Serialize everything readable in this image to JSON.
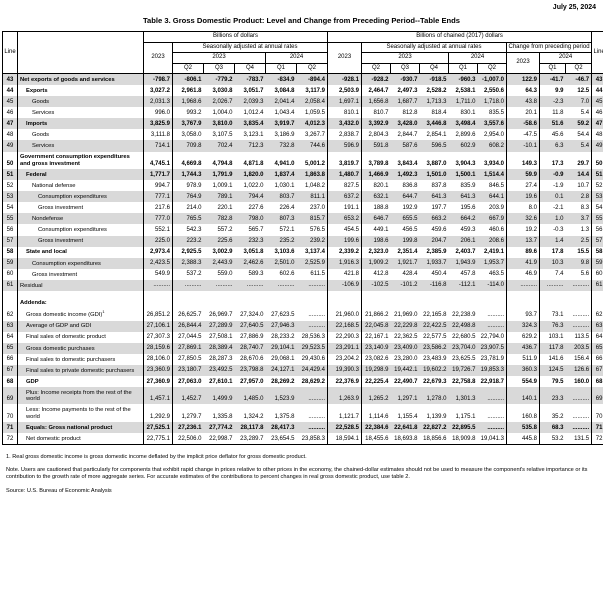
{
  "page": {
    "date": "July 25, 2024",
    "title": "Table 3. Gross Domestic Product: Level and Change from Preceding Period--Table Ends"
  },
  "header": {
    "line": "Line",
    "billions": "Billions of dollars",
    "chained": "Billions of chained (2017) dollars",
    "saar": "Seasonally adjusted at annual rates",
    "change": "Change from preceding period",
    "y2023": "2023",
    "y2024": "2024",
    "q": [
      "Q2",
      "Q3",
      "Q4",
      "Q1",
      "Q2"
    ]
  },
  "table": {
    "rows": [
      {
        "line": "43",
        "label": "Net exports of goods and services",
        "indent": 0,
        "bold": true,
        "shaded": true,
        "bil": [
          "-798.7",
          "-806.1",
          "-779.2",
          "-783.7",
          "-834.9",
          "-894.4"
        ],
        "ch": [
          "-928.1",
          "-928.2",
          "-930.7",
          "-918.5",
          "-960.3",
          "-1,007.0"
        ],
        "chg": [
          "122.9",
          "-41.7",
          "-46.7"
        ]
      },
      {
        "line": "44",
        "label": "Exports",
        "indent": 1,
        "bold": true,
        "shaded": false,
        "bil": [
          "3,027.2",
          "2,961.8",
          "3,030.8",
          "3,051.7",
          "3,084.8",
          "3,117.9"
        ],
        "ch": [
          "2,503.9",
          "2,464.7",
          "2,497.3",
          "2,528.2",
          "2,538.1",
          "2,550.6"
        ],
        "chg": [
          "64.3",
          "9.9",
          "12.5"
        ]
      },
      {
        "line": "45",
        "label": "Goods",
        "indent": 2,
        "bold": false,
        "shaded": true,
        "bil": [
          "2,031.3",
          "1,968.6",
          "2,026.7",
          "2,039.3",
          "2,041.4",
          "2,058.4"
        ],
        "ch": [
          "1,697.1",
          "1,656.8",
          "1,687.7",
          "1,713.3",
          "1,711.0",
          "1,718.0"
        ],
        "chg": [
          "43.8",
          "-2.3",
          "7.0"
        ]
      },
      {
        "line": "46",
        "label": "Services",
        "indent": 2,
        "bold": false,
        "shaded": false,
        "bil": [
          "996.0",
          "993.2",
          "1,004.0",
          "1,012.4",
          "1,043.4",
          "1,059.5"
        ],
        "ch": [
          "810.1",
          "810.7",
          "812.8",
          "818.4",
          "830.1",
          "835.5"
        ],
        "chg": [
          "20.1",
          "11.8",
          "5.4"
        ]
      },
      {
        "line": "47",
        "label": "Imports",
        "indent": 1,
        "bold": true,
        "shaded": true,
        "bil": [
          "3,825.9",
          "3,767.9",
          "3,810.0",
          "3,835.4",
          "3,919.7",
          "4,012.3"
        ],
        "ch": [
          "3,432.0",
          "3,392.9",
          "3,428.0",
          "3,446.8",
          "3,498.4",
          "3,557.6"
        ],
        "chg": [
          "-58.6",
          "51.6",
          "59.2"
        ]
      },
      {
        "line": "48",
        "label": "Goods",
        "indent": 2,
        "bold": false,
        "shaded": false,
        "bil": [
          "3,111.8",
          "3,058.0",
          "3,107.5",
          "3,123.1",
          "3,186.9",
          "3,267.7"
        ],
        "ch": [
          "2,838.7",
          "2,804.3",
          "2,844.7",
          "2,854.1",
          "2,899.6",
          "2,954.0"
        ],
        "chg": [
          "-47.5",
          "45.6",
          "54.4"
        ]
      },
      {
        "line": "49",
        "label": "Services",
        "indent": 2,
        "bold": false,
        "shaded": true,
        "bil": [
          "714.1",
          "709.8",
          "702.4",
          "712.3",
          "732.8",
          "744.6"
        ],
        "ch": [
          "596.9",
          "591.8",
          "587.6",
          "596.5",
          "602.9",
          "608.2"
        ],
        "chg": [
          "-10.1",
          "6.3",
          "5.4"
        ]
      },
      {
        "line": "50",
        "label": "Government consumption expenditures and gross investment",
        "indent": 0,
        "bold": true,
        "shaded": false,
        "wrap": true,
        "bil": [
          "4,745.1",
          "4,669.8",
          "4,794.8",
          "4,871.8",
          "4,941.0",
          "5,001.2"
        ],
        "ch": [
          "3,819.7",
          "3,789.8",
          "3,843.4",
          "3,887.0",
          "3,904.3",
          "3,934.0"
        ],
        "chg": [
          "149.3",
          "17.3",
          "29.7"
        ]
      },
      {
        "line": "51",
        "label": "Federal",
        "indent": 1,
        "bold": true,
        "shaded": true,
        "bil": [
          "1,771.7",
          "1,744.3",
          "1,791.9",
          "1,820.0",
          "1,837.4",
          "1,863.8"
        ],
        "ch": [
          "1,480.7",
          "1,466.9",
          "1,492.3",
          "1,501.0",
          "1,500.1",
          "1,514.4"
        ],
        "chg": [
          "59.9",
          "-0.9",
          "14.4"
        ]
      },
      {
        "line": "52",
        "label": "National defense",
        "indent": 2,
        "bold": false,
        "shaded": false,
        "bil": [
          "994.7",
          "978.9",
          "1,009.1",
          "1,022.0",
          "1,030.1",
          "1,048.2"
        ],
        "ch": [
          "827.5",
          "820.1",
          "836.8",
          "837.8",
          "835.9",
          "846.5"
        ],
        "chg": [
          "27.4",
          "-1.9",
          "10.7"
        ]
      },
      {
        "line": "53",
        "label": "Consumption expenditures",
        "indent": 3,
        "bold": false,
        "shaded": true,
        "bil": [
          "777.1",
          "764.9",
          "789.1",
          "794.4",
          "803.7",
          "811.1"
        ],
        "ch": [
          "637.2",
          "632.1",
          "644.7",
          "641.3",
          "641.3",
          "644.1"
        ],
        "chg": [
          "19.6",
          "0.1",
          "2.8"
        ]
      },
      {
        "line": "54",
        "label": "Gross investment",
        "indent": 3,
        "bold": false,
        "shaded": false,
        "bil": [
          "217.6",
          "214.0",
          "220.1",
          "227.6",
          "226.4",
          "237.0"
        ],
        "ch": [
          "191.1",
          "188.8",
          "192.9",
          "197.7",
          "195.6",
          "203.9"
        ],
        "chg": [
          "8.0",
          "-2.1",
          "8.3"
        ]
      },
      {
        "line": "55",
        "label": "Nondefense",
        "indent": 2,
        "bold": false,
        "shaded": true,
        "bil": [
          "777.0",
          "765.5",
          "782.8",
          "798.0",
          "807.3",
          "815.7"
        ],
        "ch": [
          "653.2",
          "646.7",
          "655.5",
          "663.2",
          "664.2",
          "667.9"
        ],
        "chg": [
          "32.6",
          "1.0",
          "3.7"
        ]
      },
      {
        "line": "56",
        "label": "Consumption expenditures",
        "indent": 3,
        "bold": false,
        "shaded": false,
        "bil": [
          "552.1",
          "542.3",
          "557.2",
          "565.7",
          "572.1",
          "576.5"
        ],
        "ch": [
          "454.5",
          "449.1",
          "456.5",
          "459.6",
          "459.3",
          "460.6"
        ],
        "chg": [
          "19.2",
          "-0.3",
          "1.3"
        ]
      },
      {
        "line": "57",
        "label": "Gross investment",
        "indent": 3,
        "bold": false,
        "shaded": true,
        "bil": [
          "225.0",
          "223.2",
          "225.6",
          "232.3",
          "235.2",
          "239.2"
        ],
        "ch": [
          "199.6",
          "198.6",
          "199.8",
          "204.7",
          "206.1",
          "208.6"
        ],
        "chg": [
          "13.7",
          "1.4",
          "2.5"
        ]
      },
      {
        "line": "58",
        "label": "State and local",
        "indent": 1,
        "bold": true,
        "shaded": false,
        "bil": [
          "2,973.4",
          "2,925.5",
          "3,002.9",
          "3,051.8",
          "3,103.6",
          "3,137.4"
        ],
        "ch": [
          "2,339.2",
          "2,323.0",
          "2,351.4",
          "2,385.9",
          "2,403.7",
          "2,419.1"
        ],
        "chg": [
          "89.6",
          "17.8",
          "15.5"
        ]
      },
      {
        "line": "59",
        "label": "Consumption expenditures",
        "indent": 2,
        "bold": false,
        "shaded": true,
        "bil": [
          "2,423.5",
          "2,388.3",
          "2,443.9",
          "2,462.6",
          "2,501.0",
          "2,525.9"
        ],
        "ch": [
          "1,916.3",
          "1,909.2",
          "1,921.7",
          "1,933.7",
          "1,943.9",
          "1,953.7"
        ],
        "chg": [
          "41.9",
          "10.3",
          "9.8"
        ]
      },
      {
        "line": "60",
        "label": "Gross investment",
        "indent": 2,
        "bold": false,
        "shaded": false,
        "bil": [
          "549.9",
          "537.2",
          "559.0",
          "589.3",
          "602.6",
          "611.5"
        ],
        "ch": [
          "421.8",
          "412.8",
          "428.4",
          "450.4",
          "457.8",
          "463.5"
        ],
        "chg": [
          "46.9",
          "7.4",
          "5.6"
        ]
      },
      {
        "line": "61",
        "label": "Residual",
        "indent": 0,
        "bold": false,
        "shaded": true,
        "bil": [
          "..........",
          "..........",
          "..........",
          "..........",
          "..........",
          ".........."
        ],
        "ch": [
          "-106.9",
          "-102.5",
          "-101.2",
          "-116.8",
          "-112.1",
          "-114.0"
        ],
        "chg": [
          "..........",
          "..........",
          ".........."
        ]
      },
      {
        "type": "spacer"
      },
      {
        "type": "addenda",
        "label": "Addenda:",
        "indent": 0,
        "shaded": false
      },
      {
        "line": "62",
        "label": "Gross domestic income (GDI)",
        "sup": "1",
        "indent": 1,
        "bold": false,
        "shaded": false,
        "bil": [
          "26,851.2",
          "26,625.7",
          "26,969.7",
          "27,324.0",
          "27,623.5",
          ".........."
        ],
        "ch": [
          "21,960.0",
          "21,866.2",
          "21,969.0",
          "22,165.8",
          "22,238.9",
          ".........."
        ],
        "chg": [
          "93.7",
          "73.1",
          ".........."
        ]
      },
      {
        "line": "63",
        "label": "Average of GDP and GDI",
        "indent": 1,
        "bold": false,
        "shaded": true,
        "bil": [
          "27,106.1",
          "26,844.4",
          "27,289.9",
          "27,640.5",
          "27,946.3",
          ".........."
        ],
        "ch": [
          "22,168.5",
          "22,045.8",
          "22,229.8",
          "22,422.5",
          "22,498.8",
          ".........."
        ],
        "chg": [
          "324.3",
          "76.3",
          ".........."
        ]
      },
      {
        "line": "64",
        "label": "Final sales of domestic product",
        "indent": 1,
        "bold": false,
        "shaded": false,
        "bil": [
          "27,307.3",
          "27,044.5",
          "27,508.1",
          "27,886.9",
          "28,233.2",
          "28,536.3"
        ],
        "ch": [
          "22,290.3",
          "22,167.1",
          "22,362.5",
          "22,577.5",
          "22,680.5",
          "22,794.0"
        ],
        "chg": [
          "629.2",
          "103.1",
          "113.5"
        ]
      },
      {
        "line": "65",
        "label": "Gross domestic purchases",
        "indent": 1,
        "bold": false,
        "shaded": true,
        "bil": [
          "28,159.6",
          "27,869.1",
          "28,389.4",
          "28,740.7",
          "29,104.1",
          "29,523.5"
        ],
        "ch": [
          "23,291.1",
          "23,140.9",
          "23,409.0",
          "23,586.2",
          "23,704.0",
          "23,907.5"
        ],
        "chg": [
          "436.7",
          "117.8",
          "203.5"
        ]
      },
      {
        "line": "66",
        "label": "Final sales to domestic purchasers",
        "indent": 1,
        "bold": false,
        "shaded": false,
        "bil": [
          "28,106.0",
          "27,850.5",
          "28,287.3",
          "28,670.6",
          "29,068.1",
          "29,430.6"
        ],
        "ch": [
          "23,204.2",
          "23,082.6",
          "23,280.0",
          "23,483.9",
          "23,625.5",
          "23,781.9"
        ],
        "chg": [
          "511.9",
          "141.6",
          "156.4"
        ]
      },
      {
        "line": "67",
        "label": "Final sales to private domestic purchasers",
        "indent": 1,
        "bold": false,
        "shaded": true,
        "bil": [
          "23,360.9",
          "23,180.7",
          "23,492.5",
          "23,798.8",
          "24,127.1",
          "24,429.4"
        ],
        "ch": [
          "19,390.3",
          "19,298.9",
          "19,442.1",
          "19,602.2",
          "19,726.7",
          "19,853.3"
        ],
        "chg": [
          "360.3",
          "124.5",
          "126.6"
        ]
      },
      {
        "line": "68",
        "label": "GDP",
        "indent": 1,
        "bold": true,
        "shaded": false,
        "bil": [
          "27,360.9",
          "27,063.0",
          "27,610.1",
          "27,957.0",
          "28,269.2",
          "28,629.2"
        ],
        "ch": [
          "22,376.9",
          "22,225.4",
          "22,490.7",
          "22,679.3",
          "22,758.8",
          "22,918.7"
        ],
        "chg": [
          "554.9",
          "79.5",
          "160.0"
        ]
      },
      {
        "line": "69",
        "label": "Plus: Income receipts from the rest of the world",
        "indent": 1,
        "bold": false,
        "shaded": true,
        "wrap": true,
        "bil": [
          "1,457.1",
          "1,452.7",
          "1,499.9",
          "1,485.0",
          "1,523.9",
          ".........."
        ],
        "ch": [
          "1,263.9",
          "1,265.2",
          "1,297.1",
          "1,278.0",
          "1,301.3",
          ".........."
        ],
        "chg": [
          "140.1",
          "23.3",
          ".........."
        ]
      },
      {
        "line": "70",
        "label": "Less: Income payments to the rest of the world",
        "indent": 1,
        "bold": false,
        "shaded": false,
        "wrap": true,
        "bil": [
          "1,292.9",
          "1,279.7",
          "1,335.8",
          "1,324.2",
          "1,375.8",
          ".........."
        ],
        "ch": [
          "1,121.7",
          "1,114.6",
          "1,155.4",
          "1,139.9",
          "1,175.1",
          ".........."
        ],
        "chg": [
          "160.8",
          "35.2",
          ".........."
        ]
      },
      {
        "line": "71",
        "label": "Equals: Gross national product",
        "indent": 1,
        "bold": true,
        "shaded": true,
        "bil": [
          "27,525.1",
          "27,236.1",
          "27,774.2",
          "28,117.8",
          "28,417.3",
          ".........."
        ],
        "ch": [
          "22,528.5",
          "22,384.6",
          "22,641.8",
          "22,827.2",
          "22,895.5",
          ".........."
        ],
        "chg": [
          "535.8",
          "68.3",
          ".........."
        ]
      },
      {
        "line": "72",
        "label": "Net domestic product",
        "indent": 1,
        "bold": false,
        "shaded": false,
        "bil": [
          "22,775.1",
          "22,506.0",
          "22,998.7",
          "23,289.7",
          "23,654.5",
          "23,858.3"
        ],
        "ch": [
          "18,594.1",
          "18,455.6",
          "18,693.8",
          "18,856.6",
          "18,909.8",
          "19,041.3"
        ],
        "chg": [
          "445.8",
          "53.2",
          "131.5"
        ]
      }
    ]
  },
  "footnotes": {
    "f1": "1. Real gross domestic income is gross domestic income deflated by the implicit price deflator for gross domestic product.",
    "note": "Note. Users are cautioned that particularly for components that exhibit rapid change in prices relative to other prices in the economy, the chained-dollar estimates should not be used to measure the component's relative importance or its contribution to the growth rate of more aggregate series. For accurate estimates of the contributions to percent changes in real gross domestic product, use table 2.",
    "source": "Source: U.S. Bureau of Economic Analysis"
  }
}
